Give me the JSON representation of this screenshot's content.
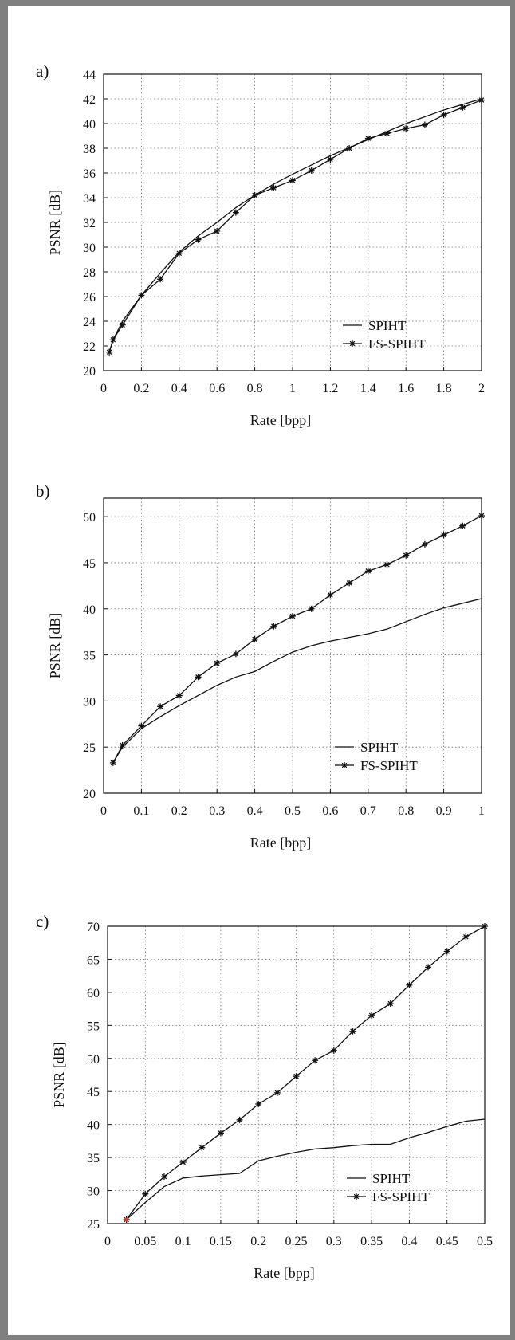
{
  "chart_data": [
    {
      "type": "line",
      "panel_label": "a)",
      "xlabel": "Rate [bpp]",
      "ylabel": "PSNR [dB]",
      "xlim": [
        0,
        2
      ],
      "ylim": [
        20,
        44
      ],
      "xticks": [
        "0",
        "0.2",
        "0.4",
        "0.6",
        "0.8",
        "1",
        "1.2",
        "1.4",
        "1.6",
        "1.8",
        "2"
      ],
      "yticks": [
        "20",
        "22",
        "24",
        "26",
        "28",
        "30",
        "32",
        "34",
        "36",
        "38",
        "40",
        "42",
        "44"
      ],
      "grid": true,
      "legend_position": "bottom-right",
      "series": [
        {
          "name": "SPIHT",
          "marker": "none",
          "x": [
            0.03,
            0.05,
            0.1,
            0.2,
            0.3,
            0.4,
            0.5,
            0.6,
            0.7,
            0.8,
            0.9,
            1.0,
            1.2,
            1.4,
            1.6,
            1.8,
            2.0
          ],
          "y": [
            21.5,
            22.5,
            24.0,
            26.1,
            27.9,
            29.6,
            30.9,
            32.0,
            33.2,
            34.2,
            35.1,
            35.9,
            37.4,
            38.7,
            40.0,
            41.1,
            42.0
          ]
        },
        {
          "name": "FS-SPIHT",
          "marker": "star",
          "x": [
            0.03,
            0.05,
            0.1,
            0.2,
            0.3,
            0.4,
            0.5,
            0.6,
            0.7,
            0.8,
            0.9,
            1.0,
            1.1,
            1.2,
            1.3,
            1.4,
            1.5,
            1.6,
            1.7,
            1.8,
            1.9,
            2.0
          ],
          "y": [
            21.5,
            22.5,
            23.7,
            26.1,
            27.4,
            29.5,
            30.6,
            31.3,
            32.8,
            34.2,
            34.8,
            35.4,
            36.2,
            37.1,
            38.0,
            38.8,
            39.2,
            39.6,
            39.9,
            40.7,
            41.3,
            41.9
          ]
        }
      ]
    },
    {
      "type": "line",
      "panel_label": "b)",
      "xlabel": "Rate [bpp]",
      "ylabel": "PSNR [dB]",
      "xlim": [
        0,
        1
      ],
      "ylim": [
        20,
        52
      ],
      "xticks": [
        "0",
        "0.1",
        "0.2",
        "0.3",
        "0.4",
        "0.5",
        "0.6",
        "0.7",
        "0.8",
        "0.9",
        "1"
      ],
      "yticks": [
        "20",
        "25",
        "30",
        "35",
        "40",
        "45",
        "50"
      ],
      "grid": true,
      "legend_position": "bottom-right",
      "series": [
        {
          "name": "SPIHT",
          "marker": "none",
          "x": [
            0.025,
            0.05,
            0.1,
            0.15,
            0.2,
            0.25,
            0.3,
            0.35,
            0.4,
            0.45,
            0.5,
            0.55,
            0.6,
            0.65,
            0.7,
            0.75,
            0.8,
            0.85,
            0.9,
            0.95,
            1.0
          ],
          "y": [
            23.3,
            25.0,
            27.0,
            28.3,
            29.5,
            30.6,
            31.7,
            32.6,
            33.2,
            34.3,
            35.3,
            36.0,
            36.5,
            36.9,
            37.3,
            37.8,
            38.6,
            39.4,
            40.1,
            40.6,
            41.1
          ]
        },
        {
          "name": "FS-SPIHT",
          "marker": "star",
          "x": [
            0.025,
            0.05,
            0.1,
            0.15,
            0.2,
            0.25,
            0.3,
            0.35,
            0.4,
            0.45,
            0.5,
            0.55,
            0.6,
            0.65,
            0.7,
            0.75,
            0.8,
            0.85,
            0.9,
            0.95,
            1.0
          ],
          "y": [
            23.3,
            25.2,
            27.3,
            29.4,
            30.6,
            32.6,
            34.1,
            35.1,
            36.7,
            38.1,
            39.2,
            40.0,
            41.5,
            42.8,
            44.1,
            44.8,
            45.8,
            47.0,
            48.0,
            49.0,
            50.1
          ]
        }
      ]
    },
    {
      "type": "line",
      "panel_label": "c)",
      "xlabel": "Rate [bpp]",
      "ylabel": "PSNR [dB]",
      "xlim": [
        0,
        0.5
      ],
      "ylim": [
        25,
        70
      ],
      "xticks": [
        "0",
        "0.05",
        "0.1",
        "0.15",
        "0.2",
        "0.25",
        "0.3",
        "0.35",
        "0.4",
        "0.45",
        "0.5"
      ],
      "yticks": [
        "25",
        "30",
        "35",
        "40",
        "45",
        "50",
        "55",
        "60",
        "65",
        "70"
      ],
      "grid": true,
      "legend_position": "bottom-right",
      "series": [
        {
          "name": "SPIHT",
          "marker": "none",
          "x": [
            0.025,
            0.05,
            0.075,
            0.1,
            0.125,
            0.15,
            0.175,
            0.2,
            0.225,
            0.25,
            0.275,
            0.3,
            0.325,
            0.35,
            0.375,
            0.4,
            0.425,
            0.45,
            0.475,
            0.5
          ],
          "y": [
            25.6,
            28.2,
            30.6,
            31.9,
            32.2,
            32.4,
            32.6,
            34.5,
            35.2,
            35.8,
            36.3,
            36.5,
            36.8,
            37.0,
            37.0,
            38.0,
            38.8,
            39.7,
            40.5,
            40.8
          ]
        },
        {
          "name": "FS-SPIHT",
          "marker": "star",
          "x": [
            0.025,
            0.05,
            0.075,
            0.1,
            0.125,
            0.15,
            0.175,
            0.2,
            0.225,
            0.25,
            0.275,
            0.3,
            0.325,
            0.35,
            0.375,
            0.4,
            0.425,
            0.45,
            0.475,
            0.5
          ],
          "y": [
            25.6,
            29.5,
            32.1,
            34.3,
            36.5,
            38.7,
            40.7,
            43.1,
            44.8,
            47.3,
            49.7,
            51.2,
            54.1,
            56.5,
            58.3,
            61.1,
            63.8,
            66.2,
            68.4,
            70.0
          ]
        }
      ]
    }
  ]
}
